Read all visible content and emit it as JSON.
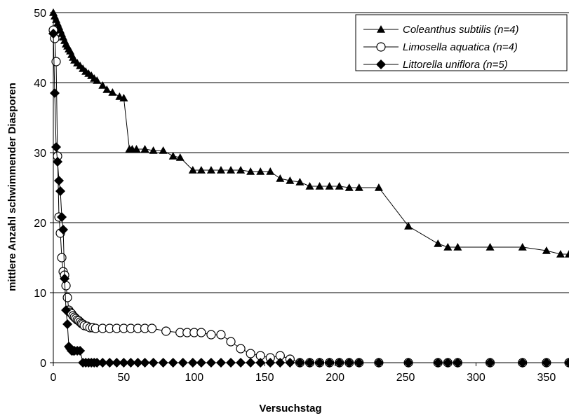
{
  "chart_data": {
    "type": "line",
    "title": "",
    "xlabel": "Versuchstag",
    "ylabel": "mittlere Anzahl schwimmender Diasporen",
    "xlim": [
      0,
      366
    ],
    "ylim": [
      0,
      50
    ],
    "xticks": [
      0,
      50,
      100,
      150,
      200,
      250,
      300,
      350
    ],
    "yticks": [
      0,
      10,
      20,
      30,
      40,
      50
    ],
    "grid": "horizontal",
    "legend_position": "top-right",
    "series": [
      {
        "name": "Coleanthus subtilis (n=4)",
        "marker": "triangle",
        "color": "#000000",
        "x": [
          0,
          1,
          2,
          3,
          4,
          5,
          6,
          7,
          8,
          9,
          10,
          11,
          12,
          13,
          14,
          15,
          17,
          19,
          21,
          23,
          25,
          27,
          29,
          31,
          35,
          38,
          42,
          47,
          50,
          54,
          56,
          59,
          65,
          71,
          78,
          85,
          90,
          99,
          105,
          112,
          119,
          126,
          133,
          140,
          147,
          154,
          161,
          168,
          175,
          182,
          189,
          196,
          203,
          210,
          217,
          231,
          252,
          273,
          280,
          287,
          310,
          333,
          350,
          360,
          366
        ],
        "y": [
          50,
          49.5,
          49,
          48.5,
          48,
          47.5,
          47,
          46.5,
          46,
          45.5,
          45.2,
          44.8,
          44.5,
          44,
          43.6,
          43.2,
          42.8,
          42.4,
          42,
          41.6,
          41.3,
          41,
          40.6,
          40.3,
          39.6,
          39,
          38.6,
          38,
          37.8,
          30.5,
          30.5,
          30.5,
          30.5,
          30.3,
          30.3,
          29.5,
          29.3,
          27.5,
          27.5,
          27.5,
          27.5,
          27.5,
          27.5,
          27.3,
          27.3,
          27.3,
          26.3,
          26,
          25.8,
          25.2,
          25.2,
          25.2,
          25.2,
          25,
          25,
          25,
          19.5,
          17,
          16.5,
          16.5,
          16.5,
          16.5,
          16,
          15.5,
          15.5
        ]
      },
      {
        "name": "Limosella aquatica (n=4)",
        "marker": "circle-open",
        "color": "#000000",
        "x": [
          0,
          1,
          2,
          3,
          4,
          5,
          6,
          7,
          8,
          9,
          10,
          11,
          12,
          13,
          14,
          15,
          16,
          17,
          18,
          19,
          20,
          21,
          22,
          24,
          26,
          28,
          30,
          35,
          40,
          45,
          50,
          55,
          60,
          65,
          70,
          80,
          90,
          95,
          100,
          105,
          112,
          119,
          126,
          133,
          140,
          147,
          154,
          161,
          168,
          175,
          182,
          189,
          196,
          203,
          210,
          217,
          231,
          252,
          273,
          280,
          287,
          310,
          333,
          350,
          366
        ],
        "y": [
          47.5,
          46.3,
          43,
          29.5,
          20.8,
          18.5,
          15,
          13,
          12.5,
          11,
          9.3,
          7.5,
          7.2,
          7,
          6.7,
          6.5,
          6.3,
          6.1,
          6,
          5.8,
          5.6,
          5.5,
          5.3,
          5.2,
          5,
          5,
          4.9,
          4.9,
          4.9,
          4.9,
          4.9,
          4.9,
          4.9,
          4.9,
          4.9,
          4.5,
          4.3,
          4.3,
          4.3,
          4.3,
          4,
          4,
          3,
          2,
          1.3,
          1,
          0.7,
          1,
          0.5,
          0,
          0,
          0,
          0,
          0,
          0,
          0,
          0,
          0,
          0,
          0,
          0,
          0,
          0,
          0,
          0
        ]
      },
      {
        "name": "Littorella uniflora (n=5)",
        "marker": "diamond",
        "color": "#000000",
        "x": [
          0,
          1,
          2,
          3,
          4,
          5,
          6,
          7,
          8,
          9,
          10,
          11,
          12,
          13,
          14,
          15,
          17,
          19,
          21,
          23,
          25,
          27,
          29,
          31,
          35,
          40,
          45,
          50,
          55,
          60,
          65,
          71,
          78,
          85,
          92,
          99,
          105,
          112,
          119,
          126,
          133,
          140,
          147,
          154,
          161,
          168,
          175,
          182,
          189,
          196,
          203,
          210,
          217,
          231,
          252,
          273,
          280,
          287,
          310,
          333,
          350,
          366
        ],
        "y": [
          47,
          38.5,
          30.8,
          28.7,
          26,
          24.5,
          20.8,
          19,
          12,
          7.5,
          5.5,
          2.3,
          2,
          1.7,
          1.7,
          1.7,
          1.7,
          1.7,
          0,
          0,
          0,
          0,
          0,
          0,
          0,
          0,
          0,
          0,
          0,
          0,
          0,
          0,
          0,
          0,
          0,
          0,
          0,
          0,
          0,
          0,
          0,
          0,
          0,
          0,
          0,
          0,
          0,
          0,
          0,
          0,
          0,
          0,
          0,
          0,
          0,
          0,
          0,
          0,
          0,
          0,
          0,
          0
        ]
      }
    ]
  }
}
